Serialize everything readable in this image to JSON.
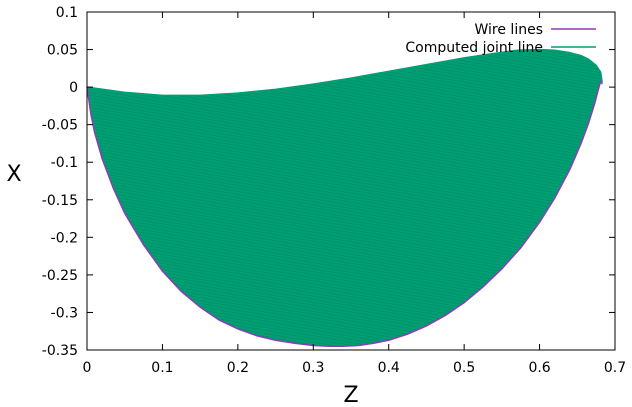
{
  "chart_data": {
    "type": "area",
    "title": "",
    "xlabel": "Z",
    "ylabel": "X",
    "xlim": [
      0,
      0.7
    ],
    "ylim": [
      -0.35,
      0.1
    ],
    "grid": false,
    "legend_position": "top-right",
    "x_ticks": [
      "0",
      "0.1",
      "0.2",
      "0.3",
      "0.4",
      "0.5",
      "0.6",
      "0.7"
    ],
    "y_ticks": [
      "0.1",
      "0.05",
      "0",
      "-0.05",
      "-0.1",
      "-0.15",
      "-0.2",
      "-0.25",
      "-0.3",
      "-0.35"
    ],
    "series": [
      {
        "name": "Wire lines",
        "color": "#8b3fb4",
        "x": [
          0.0,
          0.005,
          0.01,
          0.02,
          0.035,
          0.05,
          0.075,
          0.1,
          0.125,
          0.15,
          0.175,
          0.2,
          0.225,
          0.25,
          0.275,
          0.3,
          0.32,
          0.34,
          0.36,
          0.38,
          0.4,
          0.425,
          0.45,
          0.475,
          0.5,
          0.525,
          0.55,
          0.575,
          0.6,
          0.62,
          0.64,
          0.655,
          0.665,
          0.673,
          0.678,
          0.681,
          0.683
        ],
        "y": [
          0.0,
          -0.035,
          -0.06,
          -0.095,
          -0.135,
          -0.168,
          -0.21,
          -0.245,
          -0.272,
          -0.293,
          -0.31,
          -0.322,
          -0.331,
          -0.337,
          -0.341,
          -0.344,
          -0.345,
          -0.345,
          -0.344,
          -0.341,
          -0.337,
          -0.329,
          -0.318,
          -0.304,
          -0.287,
          -0.266,
          -0.242,
          -0.214,
          -0.18,
          -0.148,
          -0.11,
          -0.075,
          -0.048,
          -0.022,
          -0.003,
          0.008,
          0.004
        ]
      },
      {
        "name": "Computed joint line",
        "color": "#009e73",
        "x": [
          0.0,
          0.05,
          0.1,
          0.15,
          0.2,
          0.25,
          0.3,
          0.35,
          0.4,
          0.45,
          0.5,
          0.54,
          0.57,
          0.6,
          0.62,
          0.64,
          0.655,
          0.665,
          0.675,
          0.681,
          0.683
        ],
        "y": [
          0.0,
          -0.007,
          -0.011,
          -0.011,
          -0.008,
          -0.003,
          0.004,
          0.012,
          0.021,
          0.03,
          0.039,
          0.045,
          0.049,
          0.05,
          0.049,
          0.046,
          0.042,
          0.037,
          0.029,
          0.02,
          0.006
        ]
      }
    ]
  }
}
